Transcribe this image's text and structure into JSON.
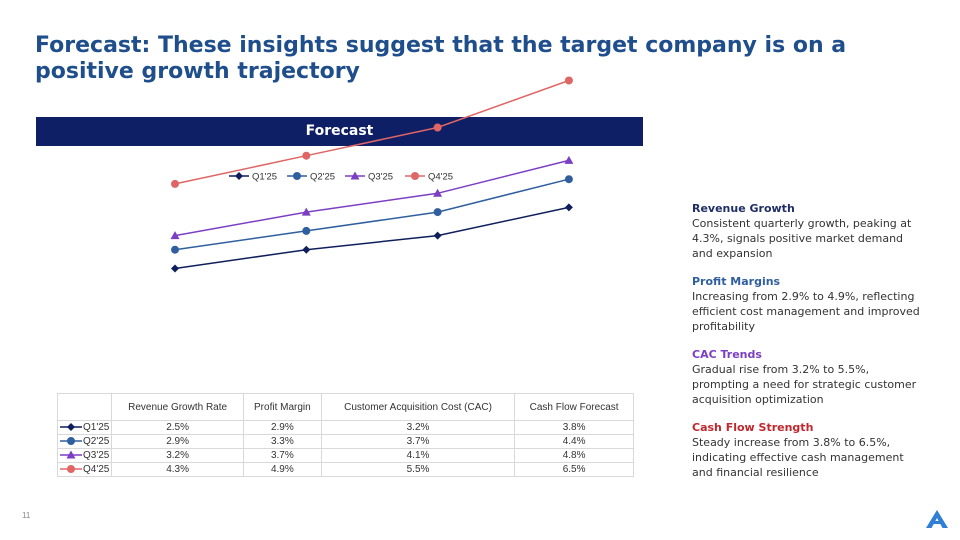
{
  "slide": {
    "title": "Forecast: These insights suggest that the target company is on a positive growth trajectory",
    "banner": "Forecast",
    "page_number": "11"
  },
  "chart_data": {
    "type": "line",
    "categories": [
      "Revenue Growth Rate",
      "Profit Margin",
      "Customer Acquisition Cost (CAC)",
      "Cash Flow Forecast"
    ],
    "series": [
      {
        "name": "Q1'25",
        "values": [
          2.5,
          2.9,
          3.2,
          3.8
        ],
        "labels": [
          "2.5%",
          "2.9%",
          "3.2%",
          "3.8%"
        ],
        "color": "#0f1f5c",
        "marker": "diamond"
      },
      {
        "name": "Q2'25",
        "values": [
          2.9,
          3.3,
          3.7,
          4.4
        ],
        "labels": [
          "2.9%",
          "3.3%",
          "3.7%",
          "4.4%"
        ],
        "color": "#2f5f9e",
        "marker": "circle"
      },
      {
        "name": "Q3'25",
        "values": [
          3.2,
          3.7,
          4.1,
          4.8
        ],
        "labels": [
          "3.2%",
          "3.7%",
          "4.1%",
          "4.8%"
        ],
        "color": "#7b3fc4",
        "marker": "triangle"
      },
      {
        "name": "Q4'25",
        "values": [
          4.3,
          4.9,
          5.5,
          6.5
        ],
        "labels": [
          "4.3%",
          "4.9%",
          "5.5%",
          "6.5%"
        ],
        "color": "#e06666",
        "marker": "circle"
      }
    ],
    "ylim": [
      0,
      7
    ],
    "grid": false,
    "legend": "top-center",
    "data_table": true
  },
  "insights": [
    {
      "title": "Revenue Growth",
      "text": "Consistent quarterly growth, peaking at 4.3%, signals positive market demand and expansion",
      "color": "#1f2f66"
    },
    {
      "title": "Profit Margins",
      "text": "Increasing from 2.9% to 4.9%, reflecting efficient cost management and improved profitability",
      "color": "#2f5f9e"
    },
    {
      "title": "CAC Trends",
      "text": "Gradual rise from 3.2% to 5.5%, prompting a need for strategic customer acquisition optimization",
      "color": "#7b3fc4"
    },
    {
      "title": "Cash Flow Strength",
      "text": "Steady increase from 3.8% to 6.5%, indicating effective cash management and financial resilience",
      "color": "#c0282d"
    }
  ],
  "icons": {
    "logo": "company-logo-icon"
  }
}
